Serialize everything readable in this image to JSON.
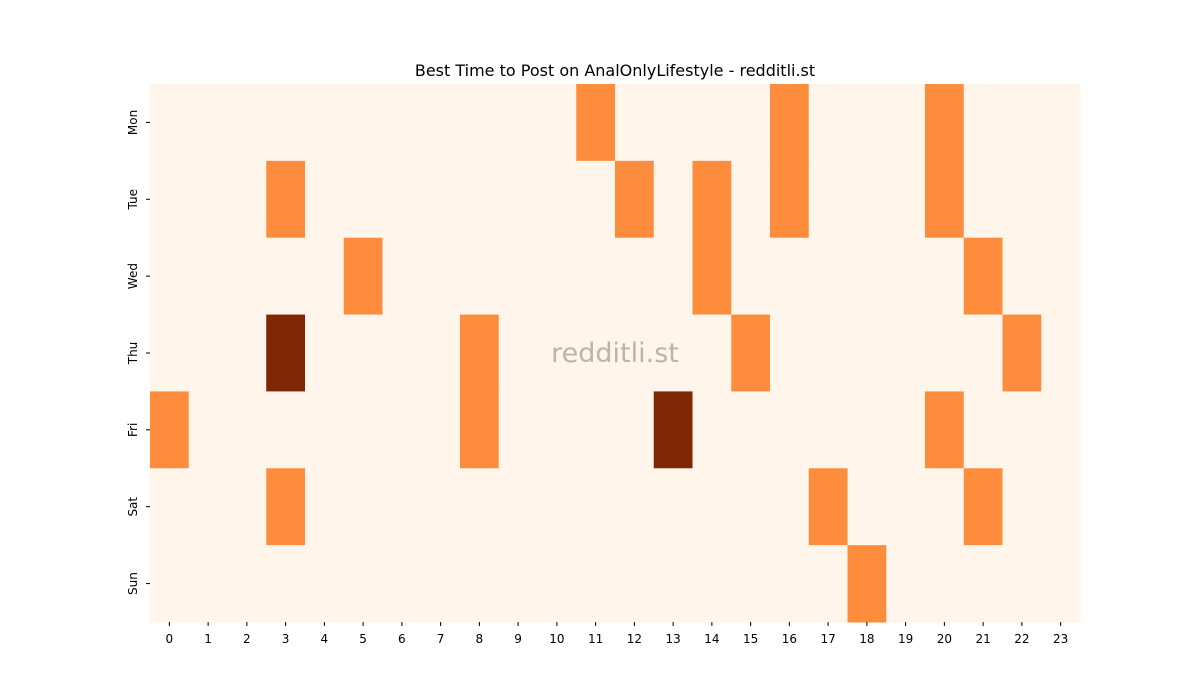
{
  "chart_data": {
    "type": "heatmap",
    "title": "Best Time to Post on AnalOnlyLifestyle - redditli.st",
    "annotation": "redditli.st",
    "x_categories": [
      "0",
      "1",
      "2",
      "3",
      "4",
      "5",
      "6",
      "7",
      "8",
      "9",
      "10",
      "11",
      "12",
      "13",
      "14",
      "15",
      "16",
      "17",
      "18",
      "19",
      "20",
      "21",
      "22",
      "23"
    ],
    "y_categories": [
      "Mon",
      "Tue",
      "Wed",
      "Thu",
      "Fri",
      "Sat",
      "Sun"
    ],
    "values": [
      [
        0,
        0,
        0,
        0,
        0,
        0,
        0,
        0,
        0,
        0,
        0,
        1,
        0,
        0,
        0,
        0,
        1,
        0,
        0,
        0,
        1,
        0,
        0,
        0
      ],
      [
        0,
        0,
        0,
        1,
        0,
        0,
        0,
        0,
        0,
        0,
        0,
        0,
        1,
        0,
        1,
        0,
        1,
        0,
        0,
        0,
        1,
        0,
        0,
        0
      ],
      [
        0,
        0,
        0,
        0,
        0,
        1,
        0,
        0,
        0,
        0,
        0,
        0,
        0,
        0,
        1,
        0,
        0,
        0,
        0,
        0,
        0,
        1,
        0,
        0
      ],
      [
        0,
        0,
        0,
        2,
        0,
        0,
        0,
        0,
        1,
        0,
        0,
        0,
        0,
        0,
        0,
        1,
        0,
        0,
        0,
        0,
        0,
        0,
        1,
        0
      ],
      [
        1,
        0,
        0,
        0,
        0,
        0,
        0,
        0,
        1,
        0,
        0,
        0,
        0,
        2,
        0,
        0,
        0,
        0,
        0,
        0,
        1,
        0,
        0,
        0
      ],
      [
        0,
        0,
        0,
        1,
        0,
        0,
        0,
        0,
        0,
        0,
        0,
        0,
        0,
        0,
        0,
        0,
        0,
        1,
        0,
        0,
        0,
        1,
        0,
        0
      ],
      [
        0,
        0,
        0,
        0,
        0,
        0,
        0,
        0,
        0,
        0,
        0,
        0,
        0,
        0,
        0,
        0,
        0,
        0,
        1,
        0,
        0,
        0,
        0,
        0
      ]
    ],
    "zlim": [
      0,
      2
    ],
    "colormap": [
      "#fff5eb",
      "#fd8d3c",
      "#7f2704"
    ]
  }
}
